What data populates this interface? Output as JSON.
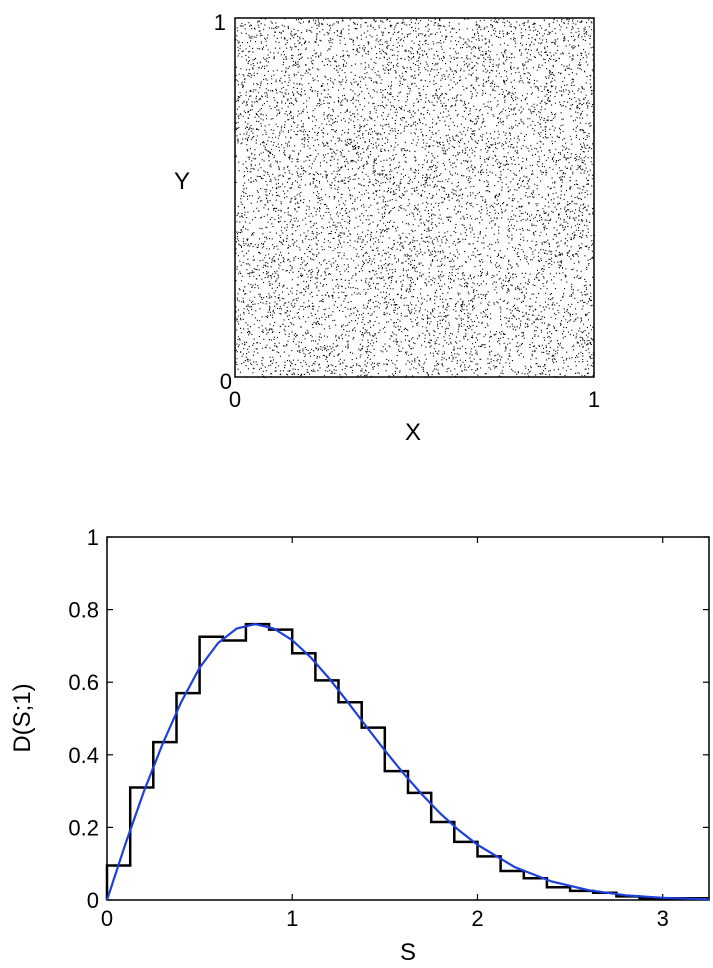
{
  "chart_data": [
    {
      "type": "scatter",
      "title": "",
      "xlabel": "X",
      "ylabel": "Y",
      "xlim": [
        0,
        1
      ],
      "ylim": [
        0,
        1
      ],
      "xticks": [
        "0",
        "1"
      ],
      "yticks": [
        "0",
        "1"
      ],
      "grid": false,
      "point_count": 8000,
      "point_color": "#000000",
      "distribution": "uniform random points over the unit square"
    },
    {
      "type": "line",
      "title": "",
      "xlabel": "S",
      "ylabel": "D(S;1)",
      "xlim": [
        0,
        3.25
      ],
      "ylim": [
        0,
        1
      ],
      "xticks": [
        "0",
        "1",
        "2",
        "3"
      ],
      "yticks": [
        "0",
        "0.2",
        "0.4",
        "0.6",
        "0.8",
        "1"
      ],
      "grid": false,
      "series": [
        {
          "kind": "histogram",
          "color": "#000000",
          "bin_width": 0.125,
          "values": [
            0.095,
            0.31,
            0.435,
            0.57,
            0.725,
            0.715,
            0.76,
            0.745,
            0.68,
            0.605,
            0.545,
            0.475,
            0.355,
            0.295,
            0.215,
            0.16,
            0.12,
            0.08,
            0.06,
            0.035,
            0.025,
            0.02,
            0.01,
            0.005,
            0.005,
            0.005
          ]
        },
        {
          "kind": "curve",
          "color": "#1f3fdc",
          "x": [
            0,
            0.1,
            0.2,
            0.3,
            0.4,
            0.5,
            0.6,
            0.7,
            0.8,
            0.9,
            1.0,
            1.1,
            1.2,
            1.3,
            1.4,
            1.5,
            1.6,
            1.7,
            1.8,
            1.9,
            2.0,
            2.2,
            2.4,
            2.6,
            2.8,
            3.0,
            3.25
          ],
          "y": [
            0,
            0.155,
            0.3,
            0.43,
            0.545,
            0.64,
            0.708,
            0.748,
            0.76,
            0.748,
            0.716,
            0.668,
            0.61,
            0.545,
            0.478,
            0.412,
            0.349,
            0.291,
            0.238,
            0.192,
            0.152,
            0.091,
            0.051,
            0.027,
            0.013,
            0.006,
            0.002
          ]
        }
      ]
    }
  ]
}
